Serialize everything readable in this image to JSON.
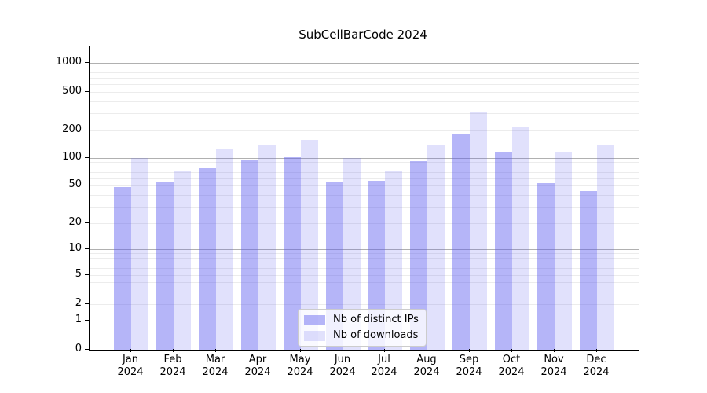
{
  "chart_data": {
    "type": "bar",
    "title": "SubCellBarCode 2024",
    "xlabel": "",
    "ylabel": "",
    "categories": [
      "Jan",
      "Feb",
      "Mar",
      "Apr",
      "May",
      "Jun",
      "Jul",
      "Aug",
      "Sep",
      "Oct",
      "Nov",
      "Dec"
    ],
    "year_label": "2024",
    "series": [
      {
        "name": "Nb of distinct IPs",
        "color": "rgba(90,90,240,0.45)",
        "values": [
          48,
          55,
          77,
          95,
          101,
          54,
          56,
          93,
          185,
          114,
          53,
          44
        ]
      },
      {
        "name": "Nb of downloads",
        "color": "rgba(90,90,240,0.18)",
        "values": [
          100,
          73,
          125,
          140,
          158,
          100,
          72,
          137,
          310,
          220,
          117,
          137
        ]
      }
    ],
    "yticks": [
      0,
      1,
      2,
      5,
      10,
      20,
      50,
      100,
      200,
      500,
      1000
    ],
    "scale": "symlog",
    "ylim": [
      0,
      1300
    ],
    "grid": true,
    "legend_position": "lower center"
  }
}
